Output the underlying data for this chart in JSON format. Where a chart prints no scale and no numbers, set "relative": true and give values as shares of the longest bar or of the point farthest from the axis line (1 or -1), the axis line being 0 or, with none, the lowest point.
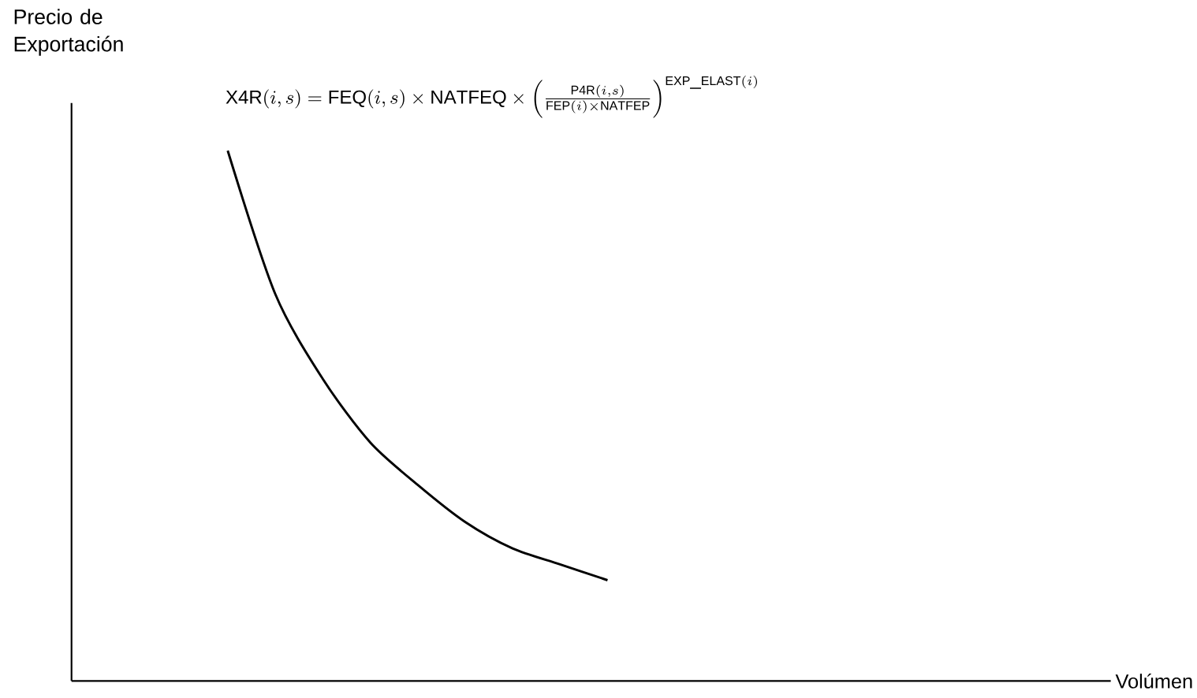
{
  "chart_data": {
    "type": "line",
    "relative": true,
    "annotations": [
      "\\mathrm{X4R}(i,s)=\\mathrm{FEQ}(i,s)\\times \\mathrm{NATFEQ}\\times \\left(\\frac{\\mathrm{P4R}(i,s)}{\\mathrm{FEP}(i)\\times \\mathrm{NATFEP}}\\right)^{\\mathrm{EXP\\_ELAST}(i)}",
      "Precio de Exportación",
      "Volúmen"
    ],
    "categories": [
      null,
      null,
      null,
      null,
      null,
      null,
      null,
      null,
      null
    ],
    "series": [
      {
        "color": "#000000",
        "values": [
          1,
          0.73,
          0.57,
          0.45,
          0.37,
          0.3,
          0.25,
          0.22,
          0.19
        ]
      }
    ]
  }
}
